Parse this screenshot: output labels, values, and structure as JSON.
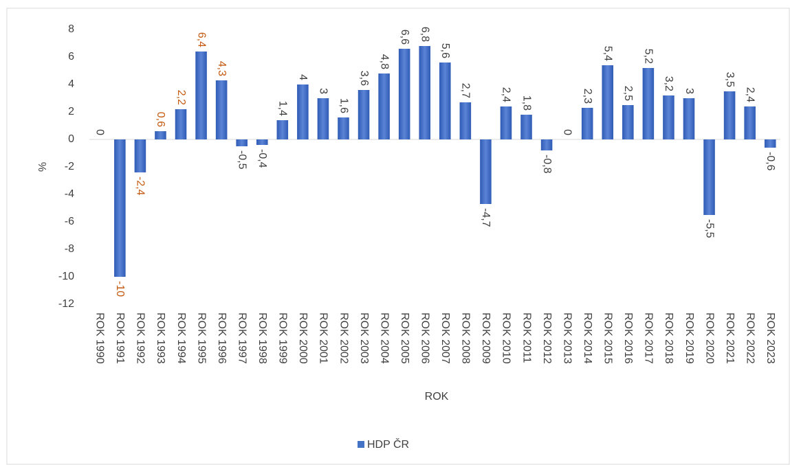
{
  "chart_data": {
    "type": "bar",
    "categories": [
      "ROK 1990",
      "ROK 1991",
      "ROK 1992",
      "ROK 1993",
      "ROK 1994",
      "ROK 1995",
      "ROK 1996",
      "ROK 1997",
      "ROK 1998",
      "ROK 1999",
      "ROK 2000",
      "ROK 2001",
      "ROK 2002",
      "ROK 2003",
      "ROK 2004",
      "ROK 2005",
      "ROK 2006",
      "ROK 2007",
      "ROK 2008",
      "ROK 2009",
      "ROK 2010",
      "ROK 2011",
      "ROK 2012",
      "ROK 2013",
      "ROK 2014",
      "ROK 2015",
      "ROK 2016",
      "ROK 2017",
      "ROK 2018",
      "ROK 2019",
      "ROK 2020",
      "ROK 2021",
      "ROK 2022",
      "ROK 2023"
    ],
    "series": [
      {
        "name": "HDP ČR",
        "color": "#4472c4",
        "values": [
          0,
          -10,
          -2.4,
          0.6,
          2.2,
          6.4,
          4.3,
          -0.5,
          -0.4,
          1.4,
          4,
          3,
          1.6,
          3.6,
          4.8,
          6.6,
          6.8,
          5.6,
          2.7,
          -4.7,
          2.4,
          1.8,
          -0.8,
          0,
          2.3,
          5.4,
          2.5,
          5.2,
          3.2,
          3,
          -5.5,
          3.5,
          2.4,
          -0.6
        ],
        "value_labels": [
          "0",
          "-10",
          "-2,4",
          "0,6",
          "2,2",
          "6,4",
          "4,3",
          "-0,5",
          "-0,4",
          "1,4",
          "4",
          "3",
          "1,6",
          "3,6",
          "4,8",
          "6,6",
          "6,8",
          "5,6",
          "2,7",
          "-4,7",
          "2,4",
          "1,8",
          "-0,8",
          "0",
          "2,3",
          "5,4",
          "2,5",
          "5,2",
          "3,2",
          "3",
          "-5,5",
          "3,5",
          "2,4",
          "-0,6"
        ],
        "value_label_colors": [
          "#404040",
          "#c55a11",
          "#c55a11",
          "#c55a11",
          "#c55a11",
          "#c55a11",
          "#c55a11",
          "#404040",
          "#404040",
          "#404040",
          "#404040",
          "#404040",
          "#404040",
          "#404040",
          "#404040",
          "#404040",
          "#404040",
          "#404040",
          "#404040",
          "#404040",
          "#404040",
          "#404040",
          "#404040",
          "#404040",
          "#404040",
          "#404040",
          "#404040",
          "#404040",
          "#404040",
          "#404040",
          "#404040",
          "#404040",
          "#404040",
          "#404040"
        ]
      }
    ],
    "xlabel": "ROK",
    "ylabel": "%",
    "ylim": [
      -12,
      8
    ],
    "yticks": [
      -12,
      -10,
      -8,
      -6,
      -4,
      -2,
      0,
      2,
      4,
      6,
      8
    ],
    "grid": false,
    "legend": "bottom"
  }
}
